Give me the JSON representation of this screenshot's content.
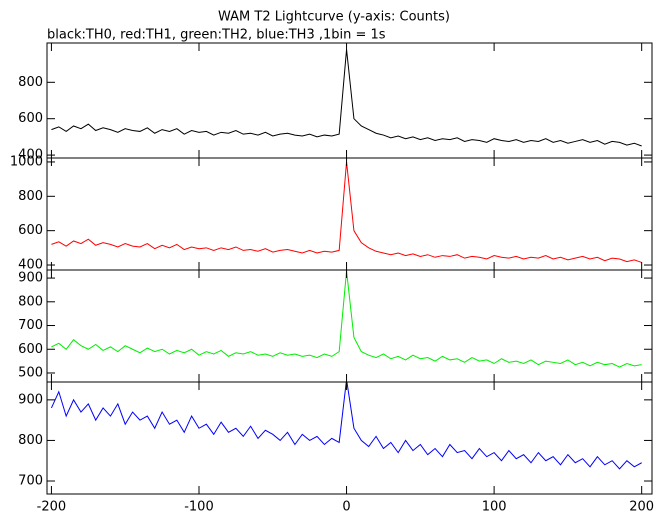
{
  "chart_data": [
    {
      "type": "line",
      "title": "WAM T2 Lightcurve (y-axis: Counts)",
      "subtitle": "black:TH0, red:TH1, green:TH2, blue:TH3 ,1bin = 1s",
      "color": "#000000",
      "x": [
        -200,
        -195,
        -190,
        -185,
        -180,
        -175,
        -170,
        -165,
        -160,
        -155,
        -150,
        -145,
        -140,
        -135,
        -130,
        -125,
        -120,
        -115,
        -110,
        -105,
        -100,
        -95,
        -90,
        -85,
        -80,
        -75,
        -70,
        -65,
        -60,
        -55,
        -50,
        -45,
        -40,
        -35,
        -30,
        -25,
        -20,
        -15,
        -10,
        -5,
        0,
        5,
        10,
        15,
        20,
        25,
        30,
        35,
        40,
        45,
        50,
        55,
        60,
        65,
        70,
        75,
        80,
        85,
        90,
        95,
        100,
        105,
        110,
        115,
        120,
        125,
        130,
        135,
        140,
        145,
        150,
        155,
        160,
        165,
        170,
        175,
        180,
        185,
        190,
        195,
        200
      ],
      "values": [
        540,
        555,
        530,
        560,
        545,
        570,
        535,
        550,
        540,
        525,
        545,
        535,
        530,
        550,
        520,
        540,
        530,
        545,
        515,
        535,
        525,
        530,
        510,
        525,
        520,
        535,
        515,
        520,
        510,
        525,
        505,
        515,
        520,
        510,
        505,
        515,
        500,
        510,
        505,
        515,
        980,
        600,
        560,
        540,
        520,
        510,
        495,
        505,
        490,
        500,
        485,
        495,
        480,
        490,
        485,
        495,
        475,
        485,
        480,
        470,
        490,
        480,
        475,
        485,
        470,
        480,
        475,
        490,
        470,
        480,
        465,
        475,
        485,
        470,
        480,
        460,
        475,
        470,
        455,
        465,
        450
      ],
      "xlim": [
        -203,
        207
      ],
      "xticks": [
        -200,
        -100,
        0,
        100,
        200
      ],
      "ylim": [
        384,
        1016
      ],
      "yticks": [
        400,
        600,
        800
      ]
    },
    {
      "type": "line",
      "color": "#ff0000",
      "x": [
        -200,
        -195,
        -190,
        -185,
        -180,
        -175,
        -170,
        -165,
        -160,
        -155,
        -150,
        -145,
        -140,
        -135,
        -130,
        -125,
        -120,
        -115,
        -110,
        -105,
        -100,
        -95,
        -90,
        -85,
        -80,
        -75,
        -70,
        -65,
        -60,
        -55,
        -50,
        -45,
        -40,
        -35,
        -30,
        -25,
        -20,
        -15,
        -10,
        -5,
        0,
        5,
        10,
        15,
        20,
        25,
        30,
        35,
        40,
        45,
        50,
        55,
        60,
        65,
        70,
        75,
        80,
        85,
        90,
        95,
        100,
        105,
        110,
        115,
        120,
        125,
        130,
        135,
        140,
        145,
        150,
        155,
        160,
        165,
        170,
        175,
        180,
        185,
        190,
        195,
        200
      ],
      "values": [
        520,
        535,
        510,
        540,
        525,
        550,
        515,
        530,
        520,
        505,
        525,
        510,
        505,
        525,
        495,
        515,
        500,
        520,
        490,
        505,
        495,
        500,
        485,
        500,
        490,
        505,
        485,
        490,
        480,
        495,
        475,
        485,
        490,
        480,
        470,
        485,
        470,
        480,
        475,
        485,
        1000,
        600,
        530,
        500,
        480,
        470,
        460,
        470,
        455,
        465,
        450,
        460,
        445,
        455,
        450,
        460,
        440,
        450,
        445,
        435,
        455,
        445,
        440,
        450,
        435,
        445,
        440,
        455,
        435,
        445,
        430,
        440,
        450,
        435,
        445,
        425,
        440,
        435,
        420,
        430,
        415
      ],
      "xlim": [
        -203,
        207
      ],
      "xticks": [
        -200,
        -100,
        0,
        100,
        200
      ],
      "ylim": [
        371,
        1023
      ],
      "yticks": [
        400,
        600,
        800,
        1000
      ]
    },
    {
      "type": "line",
      "color": "#00ee00",
      "x": [
        -200,
        -195,
        -190,
        -185,
        -180,
        -175,
        -170,
        -165,
        -160,
        -155,
        -150,
        -145,
        -140,
        -135,
        -130,
        -125,
        -120,
        -115,
        -110,
        -105,
        -100,
        -95,
        -90,
        -85,
        -80,
        -75,
        -70,
        -65,
        -60,
        -55,
        -50,
        -45,
        -40,
        -35,
        -30,
        -25,
        -20,
        -15,
        -10,
        -5,
        0,
        5,
        10,
        15,
        20,
        25,
        30,
        35,
        40,
        45,
        50,
        55,
        60,
        65,
        70,
        75,
        80,
        85,
        90,
        95,
        100,
        105,
        110,
        115,
        120,
        125,
        130,
        135,
        140,
        145,
        150,
        155,
        160,
        165,
        170,
        175,
        180,
        185,
        190,
        195,
        200
      ],
      "values": [
        610,
        625,
        600,
        640,
        615,
        600,
        620,
        595,
        610,
        590,
        615,
        600,
        585,
        605,
        590,
        600,
        580,
        595,
        585,
        600,
        575,
        590,
        580,
        595,
        570,
        585,
        580,
        590,
        575,
        580,
        570,
        585,
        575,
        580,
        570,
        575,
        565,
        580,
        570,
        590,
        930,
        650,
        590,
        575,
        565,
        580,
        560,
        570,
        555,
        575,
        560,
        565,
        550,
        570,
        555,
        560,
        545,
        565,
        550,
        555,
        540,
        560,
        545,
        550,
        540,
        555,
        535,
        550,
        545,
        540,
        555,
        535,
        545,
        530,
        545,
        535,
        540,
        525,
        540,
        530,
        535
      ],
      "xlim": [
        -203,
        207
      ],
      "xticks": [
        -200,
        -100,
        0,
        100,
        200
      ],
      "ylim": [
        462,
        934
      ],
      "yticks": [
        500,
        600,
        700,
        800,
        900
      ]
    },
    {
      "type": "line",
      "color": "#0000ff",
      "x": [
        -200,
        -195,
        -190,
        -185,
        -180,
        -175,
        -170,
        -165,
        -160,
        -155,
        -150,
        -145,
        -140,
        -135,
        -130,
        -125,
        -120,
        -115,
        -110,
        -105,
        -100,
        -95,
        -90,
        -85,
        -80,
        -75,
        -70,
        -65,
        -60,
        -55,
        -50,
        -45,
        -40,
        -35,
        -30,
        -25,
        -20,
        -15,
        -10,
        -5,
        0,
        5,
        10,
        15,
        20,
        25,
        30,
        35,
        40,
        45,
        50,
        55,
        60,
        65,
        70,
        75,
        80,
        85,
        90,
        95,
        100,
        105,
        110,
        115,
        120,
        125,
        130,
        135,
        140,
        145,
        150,
        155,
        160,
        165,
        170,
        175,
        180,
        185,
        190,
        195,
        200
      ],
      "values": [
        880,
        920,
        860,
        900,
        870,
        890,
        850,
        880,
        860,
        890,
        840,
        870,
        850,
        860,
        830,
        870,
        840,
        850,
        820,
        860,
        830,
        840,
        815,
        845,
        820,
        830,
        810,
        835,
        805,
        825,
        815,
        800,
        820,
        790,
        815,
        800,
        810,
        790,
        805,
        795,
        950,
        830,
        800,
        785,
        810,
        780,
        795,
        770,
        800,
        775,
        790,
        765,
        780,
        760,
        790,
        770,
        775,
        755,
        780,
        760,
        770,
        750,
        775,
        755,
        765,
        745,
        770,
        750,
        760,
        740,
        765,
        745,
        755,
        735,
        760,
        740,
        750,
        730,
        750,
        735,
        745
      ],
      "xlim": [
        -203,
        207
      ],
      "xticks": [
        -200,
        -100,
        0,
        100,
        200
      ],
      "ylim": [
        668,
        944
      ],
      "yticks": [
        700,
        800,
        900
      ]
    }
  ]
}
